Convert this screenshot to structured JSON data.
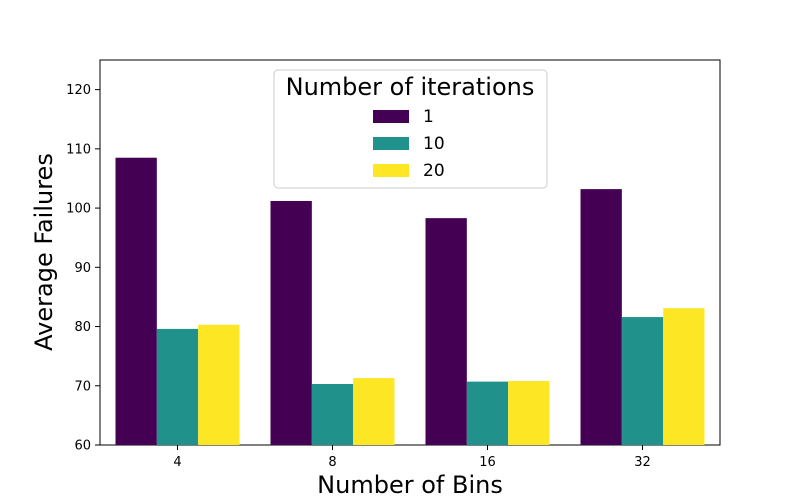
{
  "chart_data": {
    "type": "bar",
    "categories": [
      "4",
      "8",
      "16",
      "32"
    ],
    "series": [
      {
        "name": "1",
        "color": "#440154",
        "values": [
          108.5,
          101.2,
          98.3,
          103.2
        ]
      },
      {
        "name": "10",
        "color": "#21918c",
        "values": [
          79.6,
          70.3,
          70.7,
          81.6
        ]
      },
      {
        "name": "20",
        "color": "#fde725",
        "values": [
          80.3,
          71.3,
          70.8,
          83.1
        ]
      }
    ],
    "xlabel": "Number of Bins",
    "ylabel": "Average Failures",
    "ylim": [
      60,
      125
    ],
    "yticks": [
      60,
      70,
      80,
      90,
      100,
      110,
      120
    ],
    "legend": {
      "title": "Number of iterations",
      "placement": "top-center"
    },
    "grid": false
  }
}
